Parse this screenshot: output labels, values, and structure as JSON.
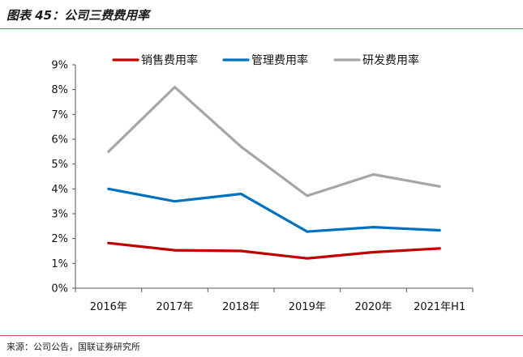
{
  "figure": {
    "title": "图表 45：公司三费费用率",
    "source": "来源：公司公告，国联证券研究所"
  },
  "chart_data": {
    "type": "line",
    "categories": [
      "2016年",
      "2017年",
      "2018年",
      "2019年",
      "2020年",
      "2021年H1"
    ],
    "series": [
      {
        "name": "销售费用率",
        "color": "#c00000",
        "values": [
          1.82,
          1.53,
          1.5,
          1.2,
          1.45,
          1.6
        ]
      },
      {
        "name": "管理费用率",
        "color": "#0070c0",
        "values": [
          4.0,
          3.5,
          3.8,
          2.28,
          2.46,
          2.33
        ]
      },
      {
        "name": "研发费用率",
        "color": "#a6a6a6",
        "values": [
          5.5,
          8.1,
          5.7,
          3.72,
          4.58,
          4.1
        ]
      }
    ],
    "ylim": [
      0,
      9
    ],
    "yticks": [
      "0%",
      "1%",
      "2%",
      "3%",
      "4%",
      "5%",
      "6%",
      "7%",
      "8%",
      "9%"
    ],
    "grid": false,
    "legend": "top"
  }
}
